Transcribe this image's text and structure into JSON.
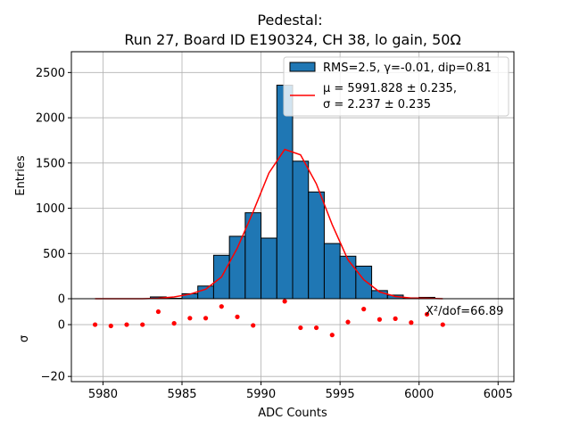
{
  "chart_data": [
    {
      "type": "bar",
      "title_line1": "Pedestal:",
      "title_line2": "Run 27, Board ID E190324, CH 38, lo gain, 50Ω",
      "xlabel": "",
      "ylabel": "Entries",
      "xlim": [
        5978,
        6006
      ],
      "ylim": [
        0,
        2730
      ],
      "xticks": [
        5980,
        5985,
        5990,
        5995,
        6000,
        6005
      ],
      "yticks": [
        0,
        500,
        1000,
        1500,
        2000,
        2500
      ],
      "grid": true,
      "bins": [
        {
          "x0": 5983,
          "x1": 5984,
          "value": 20
        },
        {
          "x0": 5984,
          "x1": 5985,
          "value": 5
        },
        {
          "x0": 5985,
          "x1": 5986,
          "value": 55
        },
        {
          "x0": 5986,
          "x1": 5987,
          "value": 140
        },
        {
          "x0": 5987,
          "x1": 5988,
          "value": 480
        },
        {
          "x0": 5988,
          "x1": 5989,
          "value": 690
        },
        {
          "x0": 5989,
          "x1": 5990,
          "value": 950
        },
        {
          "x0": 5990,
          "x1": 5991,
          "value": 670
        },
        {
          "x0": 5991,
          "x1": 5992,
          "value": 2360
        },
        {
          "x0": 5992,
          "x1": 5993,
          "value": 1520
        },
        {
          "x0": 5993,
          "x1": 5994,
          "value": 1180
        },
        {
          "x0": 5994,
          "x1": 5995,
          "value": 610
        },
        {
          "x0": 5995,
          "x1": 5996,
          "value": 470
        },
        {
          "x0": 5996,
          "x1": 5997,
          "value": 360
        },
        {
          "x0": 5997,
          "x1": 5998,
          "value": 90
        },
        {
          "x0": 5998,
          "x1": 5999,
          "value": 40
        },
        {
          "x0": 5999,
          "x1": 6000,
          "value": 10
        },
        {
          "x0": 6000,
          "x1": 6001,
          "value": 15
        }
      ],
      "fit": {
        "x": [
          5979.5,
          5980.5,
          5981.5,
          5982.5,
          5983.5,
          5984.5,
          5985.5,
          5986.5,
          5987.5,
          5988.5,
          5989.5,
          5990.5,
          5991.5,
          5992.5,
          5993.5,
          5994.5,
          5995.5,
          5996.5,
          5997.5,
          5998.5,
          5999.5,
          6000.5,
          6001.5
        ],
        "y": [
          0,
          0,
          0,
          0,
          5,
          20,
          50,
          105,
          240,
          560,
          960,
          1390,
          1650,
          1590,
          1270,
          820,
          430,
          210,
          75,
          25,
          8,
          5,
          0
        ]
      },
      "legend": {
        "position": "top-right",
        "hist_label": "RMS=2.5, γ=-0.01, dip=0.81",
        "fit_label_line1": "μ = 5991.828 ± 0.235,",
        "fit_label_line2": "σ = 2.237 ± 0.235"
      }
    },
    {
      "type": "scatter",
      "xlabel": "ADC Counts",
      "ylabel": "σ",
      "xlim": [
        5978,
        6006
      ],
      "ylim": [
        -22,
        10
      ],
      "xticks": [
        5980,
        5985,
        5990,
        5995,
        6000,
        6005
      ],
      "xtick_labels": [
        "5980",
        "5985",
        "5990",
        "5995",
        "6000",
        "6005"
      ],
      "yticks": [
        0,
        -20
      ],
      "ytick_labels": [
        "0",
        "−20"
      ],
      "grid": true,
      "annotation": "X²/dof=66.89",
      "x": [
        5979.5,
        5980.5,
        5981.5,
        5982.5,
        5983.5,
        5984.5,
        5985.5,
        5986.5,
        5987.5,
        5988.5,
        5989.5,
        5991.5,
        5992.5,
        5993.5,
        5994.5,
        5995.5,
        5996.5,
        5997.5,
        5998.5,
        5999.5,
        6000.5,
        6001.5
      ],
      "y": [
        0,
        -0.5,
        0,
        0,
        5,
        0.5,
        2.5,
        2.5,
        7,
        3,
        -0.3,
        9,
        -1.2,
        -1.2,
        -4,
        1,
        6,
        2,
        2.3,
        0.8,
        4,
        0
      ]
    }
  ],
  "colors": {
    "bar_fill": "#1f77b4",
    "bar_edge": "#000000",
    "fit_line": "#ff0000",
    "residual_marker": "#ff0000",
    "grid": "#b0b0b0"
  }
}
